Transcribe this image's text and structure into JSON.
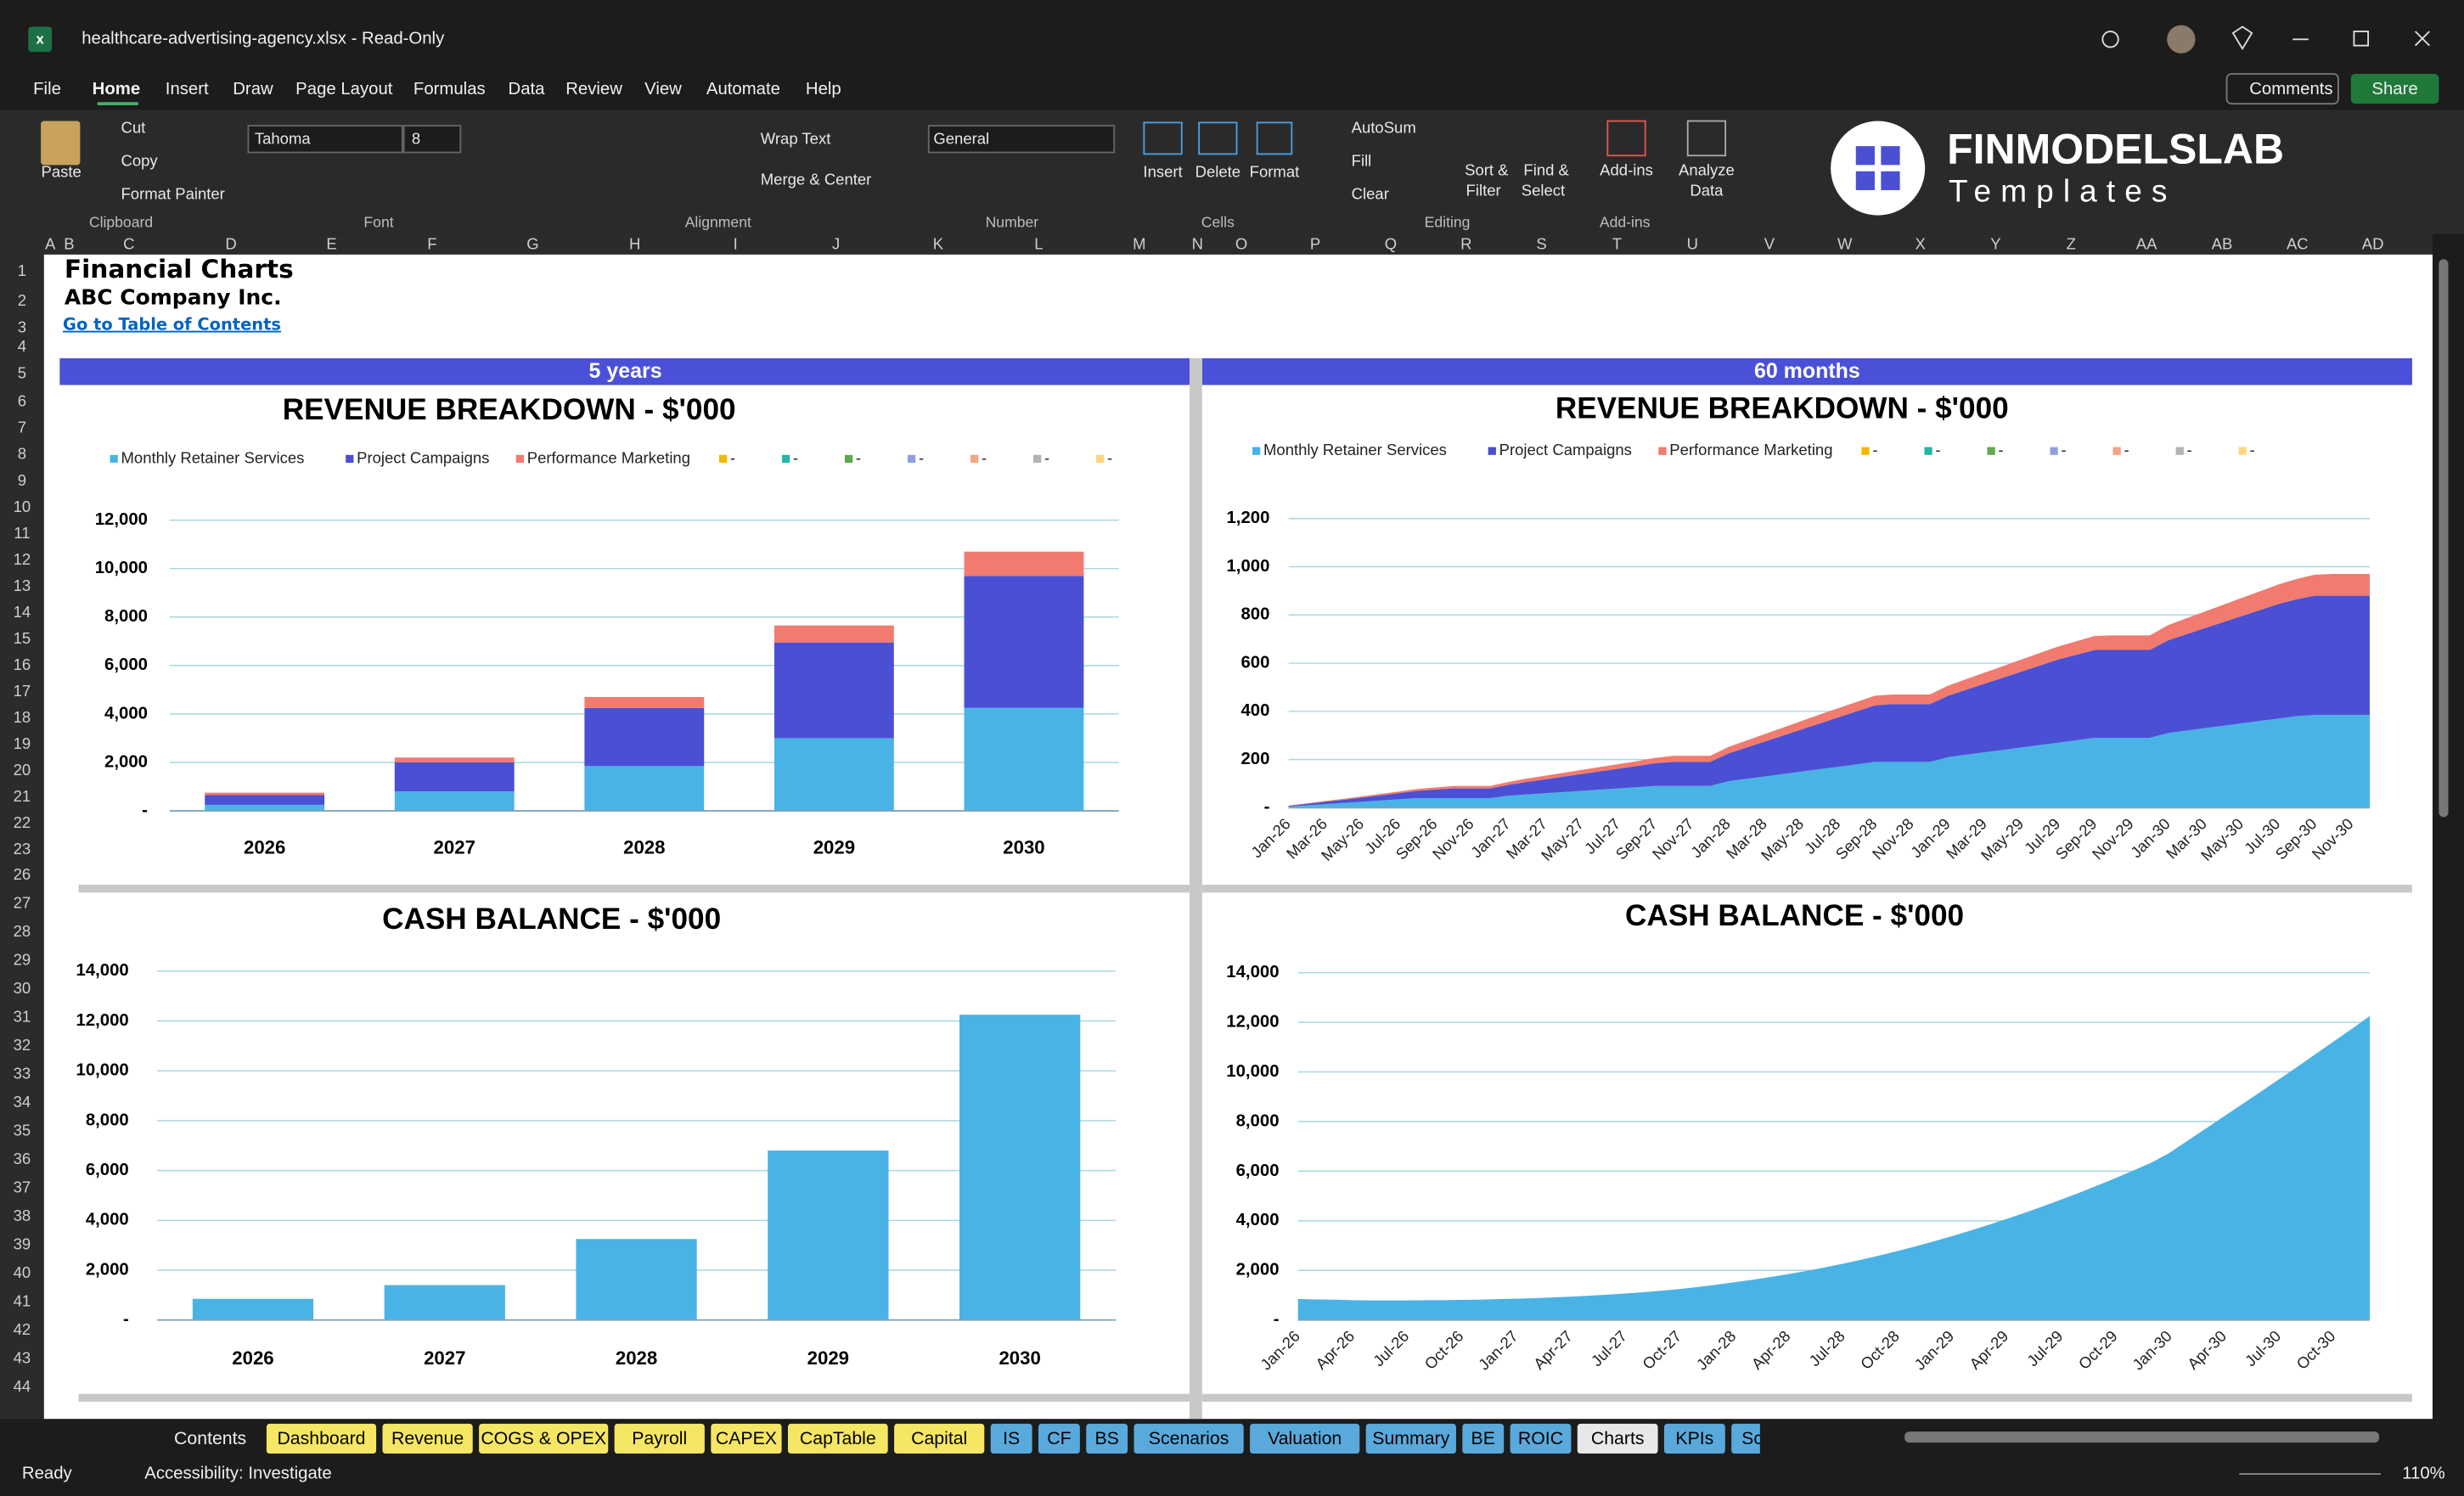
{
  "window": {
    "title": "healthcare-advertising-agency.xlsx  -  Read-Only"
  },
  "menu": [
    "File",
    "Home",
    "Insert",
    "Draw",
    "Page Layout",
    "Formulas",
    "Data",
    "Review",
    "View",
    "Automate",
    "Help"
  ],
  "actions": [
    "Comments",
    "Share"
  ],
  "ribbon": {
    "groups": [
      {
        "label": "Clipboard",
        "items": [
          "Paste",
          "Cut",
          "Copy",
          "Format Painter"
        ]
      },
      {
        "label": "Font",
        "items": [
          "Tahoma",
          "8"
        ]
      },
      {
        "label": "Alignment",
        "items": [
          "Wrap Text",
          "Merge & Center"
        ]
      },
      {
        "label": "Number",
        "items": [
          "General"
        ]
      },
      {
        "label": "Cells",
        "items": [
          "Insert",
          "Delete",
          "Format"
        ]
      },
      {
        "label": "Editing",
        "items": [
          "AutoSum",
          "Fill",
          "Clear",
          "Sort &",
          "Filter",
          "Find &",
          "Select"
        ]
      },
      {
        "label": "Add-ins",
        "items": [
          "Add-ins"
        ]
      }
    ],
    "analyze": [
      "Analyze",
      "Data"
    ]
  },
  "logo": {
    "name": "FINMODELSLAB",
    "tagline": "Templates"
  },
  "grid": {
    "columns": [
      "A",
      "B",
      "C",
      "D",
      "E",
      "F",
      "G",
      "H",
      "I",
      "J",
      "K",
      "L",
      "M",
      "N",
      "O",
      "P",
      "Q",
      "R",
      "S",
      "T",
      "U",
      "V",
      "W",
      "X",
      "Y",
      "Z",
      "AA",
      "AB",
      "AC",
      "AD"
    ],
    "rows": [
      1,
      2,
      3,
      4,
      5,
      6,
      7,
      8,
      9,
      10,
      11,
      12,
      13,
      14,
      15,
      16,
      17,
      18,
      19,
      20,
      21,
      22,
      23,
      26,
      27,
      28,
      29,
      30,
      31,
      32,
      33,
      34,
      35,
      36,
      37,
      38,
      39,
      40,
      41,
      42,
      43,
      44
    ]
  },
  "sheet": {
    "title": "Financial Charts",
    "company": "ABC Company Inc.",
    "link": "Go to Table of Contents",
    "headers": [
      "5 years",
      "60 months"
    ]
  },
  "charts": [
    {
      "type": "bar",
      "stacked": true,
      "title": "REVENUE BREAKDOWN - $'000",
      "grid": true,
      "categories": [
        "2026",
        "2027",
        "2028",
        "2029",
        "2030"
      ],
      "series": [
        {
          "name": "Monthly Retainer Services",
          "color": "#4ab3e6",
          "values": [
            250,
            800,
            1850,
            3000,
            4250
          ]
        },
        {
          "name": "Project Campaigns",
          "color": "#4b4fd4",
          "values": [
            400,
            1200,
            2400,
            3950,
            5450
          ]
        },
        {
          "name": "Performance Marketing",
          "color": "#f07b6e",
          "values": [
            100,
            200,
            450,
            700,
            1000
          ]
        }
      ],
      "legend_placeholders": [
        {
          "name": "-",
          "color": "#f2b800"
        },
        {
          "name": "-",
          "color": "#26b5a6"
        },
        {
          "name": "-",
          "color": "#5fa84f"
        },
        {
          "name": "-",
          "color": "#8fa0e0"
        },
        {
          "name": "-",
          "color": "#f4a582"
        },
        {
          "name": "-",
          "color": "#b3b3b3"
        },
        {
          "name": "-",
          "color": "#ffd57e"
        }
      ],
      "ylim": [
        0,
        12000
      ],
      "yticks": [
        {
          "value": 0,
          "label": "-"
        },
        {
          "value": 2000,
          "label": "2,000"
        },
        {
          "value": 4000,
          "label": "4,000"
        },
        {
          "value": 6000,
          "label": "6,000"
        },
        {
          "value": 8000,
          "label": "8,000"
        },
        {
          "value": 10000,
          "label": "10,000"
        },
        {
          "value": 12000,
          "label": "12,000"
        }
      ]
    },
    {
      "type": "area",
      "stacked": true,
      "title": "REVENUE BREAKDOWN - $'000",
      "grid": true,
      "categories": [
        "Jan-26",
        null,
        "Mar-26",
        null,
        "May-26",
        null,
        "Jul-26",
        null,
        "Sep-26",
        null,
        "Nov-26",
        null,
        "Jan-27",
        null,
        "Mar-27",
        null,
        "May-27",
        null,
        "Jul-27",
        null,
        "Sep-27",
        null,
        "Nov-27",
        null,
        "Jan-28",
        null,
        "Mar-28",
        null,
        "May-28",
        null,
        "Jul-28",
        null,
        "Sep-28",
        null,
        "Nov-28",
        null,
        "Jan-29",
        null,
        "Mar-29",
        null,
        "May-29",
        null,
        "Jul-29",
        null,
        "Sep-29",
        null,
        "Nov-29",
        null,
        "Jan-30",
        null,
        "Mar-30",
        null,
        "May-30",
        null,
        "Jul-30",
        null,
        "Sep-30",
        null,
        "Nov-30",
        null
      ],
      "series": [
        {
          "name": "Monthly Retainer Services",
          "color": "#4ab3e6",
          "values": [
            5,
            10,
            15,
            20,
            25,
            30,
            35,
            40,
            40,
            40,
            40,
            40,
            50,
            55,
            60,
            65,
            70,
            75,
            80,
            85,
            90,
            90,
            90,
            90,
            110,
            120,
            130,
            140,
            150,
            160,
            170,
            180,
            190,
            190,
            190,
            190,
            210,
            220,
            230,
            240,
            250,
            260,
            270,
            280,
            290,
            290,
            290,
            290,
            310,
            320,
            330,
            340,
            350,
            360,
            370,
            380,
            385,
            385,
            385,
            385
          ]
        },
        {
          "name": "Project Campaigns",
          "color": "#4b4fd4",
          "values": [
            3,
            6,
            10,
            13,
            17,
            21,
            25,
            30,
            35,
            40,
            40,
            40,
            45,
            52,
            58,
            64,
            70,
            76,
            82,
            88,
            95,
            100,
            100,
            100,
            115,
            130,
            145,
            160,
            175,
            190,
            205,
            220,
            235,
            240,
            240,
            240,
            255,
            270,
            285,
            300,
            315,
            330,
            345,
            355,
            365,
            365,
            365,
            365,
            385,
            400,
            415,
            430,
            445,
            460,
            475,
            485,
            495,
            495,
            495,
            495
          ]
        },
        {
          "name": "Performance Marketing",
          "color": "#f07b6e",
          "values": [
            1,
            2,
            3,
            4,
            5,
            6,
            7,
            8,
            9,
            10,
            10,
            10,
            12,
            14,
            15,
            16,
            17,
            18,
            19,
            20,
            22,
            25,
            25,
            25,
            27,
            29,
            31,
            33,
            35,
            37,
            38,
            39,
            40,
            40,
            40,
            40,
            42,
            44,
            46,
            48,
            50,
            52,
            54,
            56,
            58,
            60,
            60,
            60,
            63,
            66,
            69,
            72,
            75,
            78,
            81,
            84,
            87,
            90,
            90,
            90
          ]
        }
      ],
      "legend_placeholders": [
        {
          "name": "-",
          "color": "#f2b800"
        },
        {
          "name": "-",
          "color": "#26b5a6"
        },
        {
          "name": "-",
          "color": "#5fa84f"
        },
        {
          "name": "-",
          "color": "#8fa0e0"
        },
        {
          "name": "-",
          "color": "#f4a582"
        },
        {
          "name": "-",
          "color": "#b3b3b3"
        },
        {
          "name": "-",
          "color": "#ffd57e"
        }
      ],
      "ylim": [
        0,
        1200
      ],
      "yticks": [
        {
          "value": 0,
          "label": "-"
        },
        200,
        400,
        600,
        800,
        {
          "value": 1000,
          "label": "1,000"
        },
        {
          "value": 1200,
          "label": "1,200"
        }
      ]
    },
    {
      "type": "bar",
      "title": "CASH BALANCE - $'000",
      "grid": true,
      "color": "#4ab3e6",
      "categories": [
        "2026",
        "2027",
        "2028",
        "2029",
        "2030"
      ],
      "values": [
        850,
        1400,
        3250,
        6800,
        12250
      ],
      "ylim": [
        0,
        14000
      ],
      "yticks": [
        {
          "value": 0,
          "label": "-"
        },
        {
          "value": 2000,
          "label": "2,000"
        },
        {
          "value": 4000,
          "label": "4,000"
        },
        {
          "value": 6000,
          "label": "6,000"
        },
        {
          "value": 8000,
          "label": "8,000"
        },
        {
          "value": 10000,
          "label": "10,000"
        },
        {
          "value": 12000,
          "label": "12,000"
        },
        {
          "value": 14000,
          "label": "14,000"
        }
      ]
    },
    {
      "type": "area",
      "title": "CASH BALANCE - $'000",
      "grid": true,
      "color": "#4ab3e6",
      "categories": [
        "Jan-26",
        null,
        null,
        "Apr-26",
        null,
        null,
        "Jul-26",
        null,
        null,
        "Oct-26",
        null,
        null,
        "Jan-27",
        null,
        null,
        "Apr-27",
        null,
        null,
        "Jul-27",
        null,
        null,
        "Oct-27",
        null,
        null,
        "Jan-28",
        null,
        null,
        "Apr-28",
        null,
        null,
        "Jul-28",
        null,
        null,
        "Oct-28",
        null,
        null,
        "Jan-29",
        null,
        null,
        "Apr-29",
        null,
        null,
        "Jul-29",
        null,
        null,
        "Oct-29",
        null,
        null,
        "Jan-30",
        null,
        null,
        "Apr-30",
        null,
        null,
        "Jul-30",
        null,
        null,
        "Oct-30",
        null,
        null
      ],
      "values": [
        850,
        830,
        820,
        800,
        790,
        790,
        790,
        800,
        800,
        810,
        820,
        840,
        860,
        880,
        910,
        940,
        980,
        1020,
        1070,
        1120,
        1180,
        1250,
        1330,
        1420,
        1520,
        1620,
        1730,
        1850,
        1980,
        2120,
        2270,
        2430,
        2600,
        2780,
        2970,
        3170,
        3380,
        3600,
        3830,
        4070,
        4320,
        4580,
        4850,
        5130,
        5420,
        5720,
        6030,
        6350,
        6750,
        7240,
        7730,
        8220,
        8710,
        9200,
        9700,
        10200,
        10710,
        11220,
        11730,
        12250
      ],
      "ylim": [
        0,
        14000
      ],
      "yticks": [
        {
          "value": 0,
          "label": "-"
        },
        {
          "value": 2000,
          "label": "2,000"
        },
        {
          "value": 4000,
          "label": "4,000"
        },
        {
          "value": 6000,
          "label": "6,000"
        },
        {
          "value": 8000,
          "label": "8,000"
        },
        {
          "value": 10000,
          "label": "10,000"
        },
        {
          "value": 12000,
          "label": "12,000"
        },
        {
          "value": 14000,
          "label": "14,000"
        }
      ]
    }
  ],
  "tabs": [
    {
      "name": "Contents"
    },
    {
      "name": "Dashboard",
      "color": "#f5e663"
    },
    {
      "name": "Revenue",
      "color": "#f5e663"
    },
    {
      "name": "COGS & OPEX",
      "color": "#f5e663"
    },
    {
      "name": "Payroll",
      "color": "#f5e663"
    },
    {
      "name": "CAPEX",
      "color": "#f5e663"
    },
    {
      "name": "CapTable",
      "color": "#f5e663"
    },
    {
      "name": "Capital",
      "color": "#f5e663"
    },
    {
      "name": "IS",
      "color": "#5aa9dc"
    },
    {
      "name": "CF",
      "color": "#5aa9dc"
    },
    {
      "name": "BS",
      "color": "#5aa9dc"
    },
    {
      "name": "Scenarios",
      "color": "#5aa9dc"
    },
    {
      "name": "Valuation",
      "color": "#5aa9dc"
    },
    {
      "name": "Summary",
      "color": "#5aa9dc"
    },
    {
      "name": "BE",
      "color": "#5aa9dc"
    },
    {
      "name": "ROIC",
      "color": "#5aa9dc"
    },
    {
      "name": "Charts",
      "color": "#e8e8e8"
    },
    {
      "name": "KPIs",
      "color": "#5aa9dc"
    },
    {
      "name": "Sc",
      "color": "#5aa9dc"
    }
  ],
  "status": {
    "ready": "Ready",
    "accessibility": "Accessibility: Investigate",
    "zoom": "110%"
  }
}
